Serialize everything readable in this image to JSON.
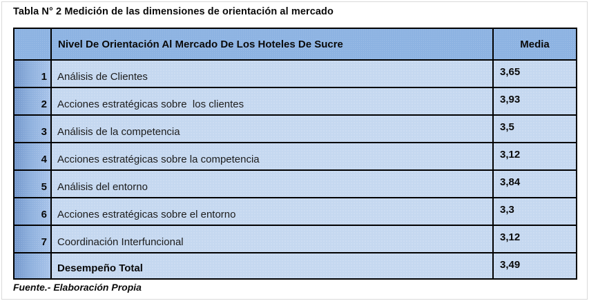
{
  "page": {
    "title": "Tabla N° 2 Medición de las dimensiones de orientación al mercado",
    "source_note": "Fuente.- Elaboración Propia"
  },
  "table": {
    "header": {
      "number_col": "",
      "dimension_col": "Nivel De Orientación Al Mercado De Los Hoteles De Sucre",
      "media_col": "Media"
    },
    "rows": [
      {
        "num": "1",
        "label": "Análisis de Clientes",
        "media": "3,65"
      },
      {
        "num": "2",
        "label": "Acciones estratégicas sobre  los clientes",
        "media": "3,93"
      },
      {
        "num": "3",
        "label": "Análisis de la competencia",
        "media": "3,5"
      },
      {
        "num": "4",
        "label": "Acciones estratégicas sobre la competencia",
        "media": "3,12"
      },
      {
        "num": "5",
        "label": "Análisis del entorno",
        "media": "3,84"
      },
      {
        "num": "6",
        "label": "Acciones estratégicas sobre el entorno",
        "media": "3,3"
      },
      {
        "num": "7",
        "label": "Coordinación Interfuncional",
        "media": "3,12"
      },
      {
        "num": "",
        "label": "Desempeño Total",
        "media": "3,49"
      }
    ]
  },
  "colors": {
    "header_blue": "#8db3e2",
    "row_blue": "#c5d8f0",
    "num_gradient_from": "#7699cd",
    "num_gradient_to": "#a9c4ea",
    "border_black": "#000000",
    "frame_gray": "#d9d9d9"
  }
}
